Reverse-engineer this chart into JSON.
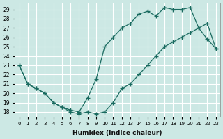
{
  "xlabel": "Humidex (Indice chaleur)",
  "bg_color": "#cce8e4",
  "grid_color": "#ffffff",
  "line_color": "#1a6b60",
  "xlim": [
    -0.5,
    23.5
  ],
  "ylim": [
    17.5,
    29.7
  ],
  "yticks": [
    18,
    19,
    20,
    21,
    22,
    23,
    24,
    25,
    26,
    27,
    28,
    29
  ],
  "xticks": [
    0,
    1,
    2,
    3,
    4,
    5,
    6,
    7,
    8,
    9,
    10,
    11,
    12,
    13,
    14,
    15,
    16,
    17,
    18,
    19,
    20,
    21,
    22,
    23
  ],
  "curve1_x": [
    0,
    1,
    2,
    3,
    4,
    5,
    6,
    7,
    8,
    9,
    10,
    11,
    12,
    13,
    14,
    15,
    16,
    17,
    18,
    19,
    20,
    21,
    22,
    23
  ],
  "curve1_y": [
    23,
    21,
    20.5,
    20,
    19,
    18.5,
    18.2,
    18,
    19.5,
    21.5,
    25,
    26,
    27,
    27.5,
    28.5,
    28.8,
    28.3,
    29.2,
    29,
    29,
    29.2,
    27,
    25.8,
    24.8
  ],
  "curve2_x": [
    0,
    1,
    2,
    3,
    4,
    5,
    6,
    7,
    8,
    9,
    10,
    11,
    12,
    13,
    14,
    15,
    16,
    17,
    18,
    19,
    20,
    21,
    22,
    23
  ],
  "curve2_y": [
    23,
    21,
    20.5,
    20,
    19,
    18.5,
    18,
    17.8,
    18,
    17.8,
    18,
    19,
    20.5,
    21,
    22,
    23,
    24,
    25,
    25.5,
    26,
    26.5,
    27,
    27.5,
    24.8
  ]
}
